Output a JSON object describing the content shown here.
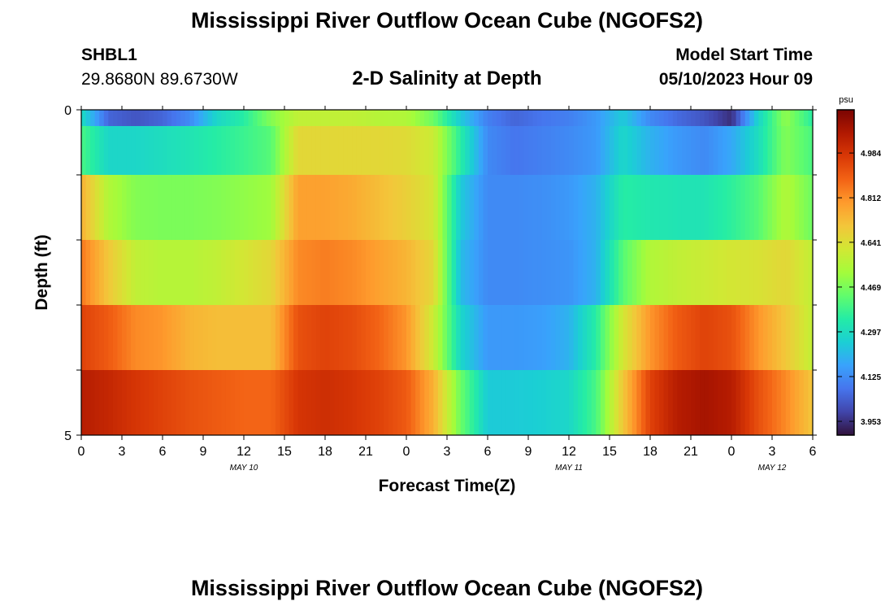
{
  "header": {
    "title": "Mississippi River Outflow Ocean Cube (NGOFS2)",
    "station_id": "SHBL1",
    "station_coords": "29.8680N  89.6730W",
    "subtitle": "2-D Salinity at Depth",
    "model_start_label": "Model Start Time",
    "model_start_value": "05/10/2023 Hour 09"
  },
  "footer": {
    "title": "Mississippi River Outflow Ocean Cube (NGOFS2)"
  },
  "chart_data": {
    "type": "heatmap",
    "title": "2-D Salinity at Depth",
    "xlabel": "Forecast Time(Z)",
    "ylabel": "Depth (ft)",
    "x_range_hours": [
      0,
      54
    ],
    "x_tick_labels": [
      "0",
      "3",
      "6",
      "9",
      "12",
      "15",
      "18",
      "21",
      "0",
      "3",
      "6",
      "9",
      "12",
      "15",
      "18",
      "21",
      "0",
      "3",
      "6"
    ],
    "date_labels": [
      {
        "label": "MAY 10",
        "hour": 12
      },
      {
        "label": "MAY 11",
        "hour": 36
      },
      {
        "label": "MAY 12",
        "hour": 51
      }
    ],
    "y_range": [
      0,
      5
    ],
    "y_tick_labels": [
      "0",
      "5"
    ],
    "colorbar": {
      "unit": "psu",
      "min": 3.9,
      "max": 5.15,
      "ticks": [
        "4.984",
        "4.812",
        "4.641",
        "4.469",
        "4.297",
        "4.125",
        "3.953"
      ],
      "colors": [
        "#30123b",
        "#4145ab",
        "#4675ed",
        "#39a2fc",
        "#1bcfd4",
        "#24eca6",
        "#61fc6c",
        "#a4fc3b",
        "#d1e834",
        "#f3c63a",
        "#fe9b2d",
        "#f36315",
        "#d93806",
        "#b11901",
        "#7a0402"
      ]
    },
    "x_hours": [
      0,
      2,
      4,
      6,
      8,
      10,
      12,
      14,
      16,
      18,
      20,
      22,
      24,
      26,
      28,
      30,
      32,
      34,
      36,
      38,
      40,
      42,
      44,
      46,
      48,
      50,
      52,
      54
    ],
    "layers": [
      {
        "depth": 0.0,
        "values": [
          4.3,
          4.05,
          4.02,
          4.05,
          4.12,
          4.28,
          4.35,
          4.48,
          4.58,
          4.58,
          4.58,
          4.56,
          4.55,
          4.45,
          4.25,
          4.1,
          4.05,
          4.08,
          4.1,
          4.15,
          4.25,
          4.12,
          4.06,
          4.02,
          3.95,
          4.28,
          4.5,
          4.35
        ]
      },
      {
        "depth": 0.5,
        "values": [
          4.4,
          4.28,
          4.28,
          4.3,
          4.32,
          4.35,
          4.38,
          4.42,
          4.66,
          4.66,
          4.66,
          4.66,
          4.65,
          4.6,
          4.35,
          4.12,
          4.08,
          4.1,
          4.12,
          4.15,
          4.28,
          4.2,
          4.15,
          4.12,
          4.18,
          4.3,
          4.48,
          4.4
        ]
      },
      {
        "depth": 1.5,
        "values": [
          4.75,
          4.55,
          4.48,
          4.47,
          4.47,
          4.48,
          4.5,
          4.52,
          4.78,
          4.78,
          4.76,
          4.72,
          4.68,
          4.62,
          4.25,
          4.12,
          4.12,
          4.13,
          4.15,
          4.2,
          4.35,
          4.33,
          4.32,
          4.32,
          4.36,
          4.42,
          4.55,
          4.45
        ]
      },
      {
        "depth": 2.5,
        "values": [
          4.85,
          4.7,
          4.58,
          4.56,
          4.56,
          4.58,
          4.62,
          4.66,
          4.82,
          4.84,
          4.82,
          4.78,
          4.74,
          4.66,
          4.22,
          4.12,
          4.12,
          4.13,
          4.14,
          4.2,
          4.42,
          4.55,
          4.58,
          4.6,
          4.62,
          4.63,
          4.66,
          4.58
        ]
      },
      {
        "depth": 3.5,
        "values": [
          4.95,
          4.9,
          4.82,
          4.8,
          4.74,
          4.72,
          4.72,
          4.72,
          4.92,
          4.95,
          4.93,
          4.88,
          4.8,
          4.6,
          4.28,
          4.15,
          4.15,
          4.16,
          4.2,
          4.35,
          4.62,
          4.8,
          4.9,
          4.95,
          4.92,
          4.8,
          4.7,
          4.58
        ]
      },
      {
        "depth": 4.5,
        "values": [
          5.05,
          5.02,
          4.98,
          4.95,
          4.92,
          4.9,
          4.88,
          4.88,
          4.98,
          5.0,
          4.98,
          4.95,
          4.9,
          4.75,
          4.45,
          4.25,
          4.25,
          4.26,
          4.28,
          4.4,
          4.7,
          4.95,
          5.05,
          5.08,
          5.05,
          4.92,
          4.82,
          4.7
        ]
      }
    ]
  }
}
